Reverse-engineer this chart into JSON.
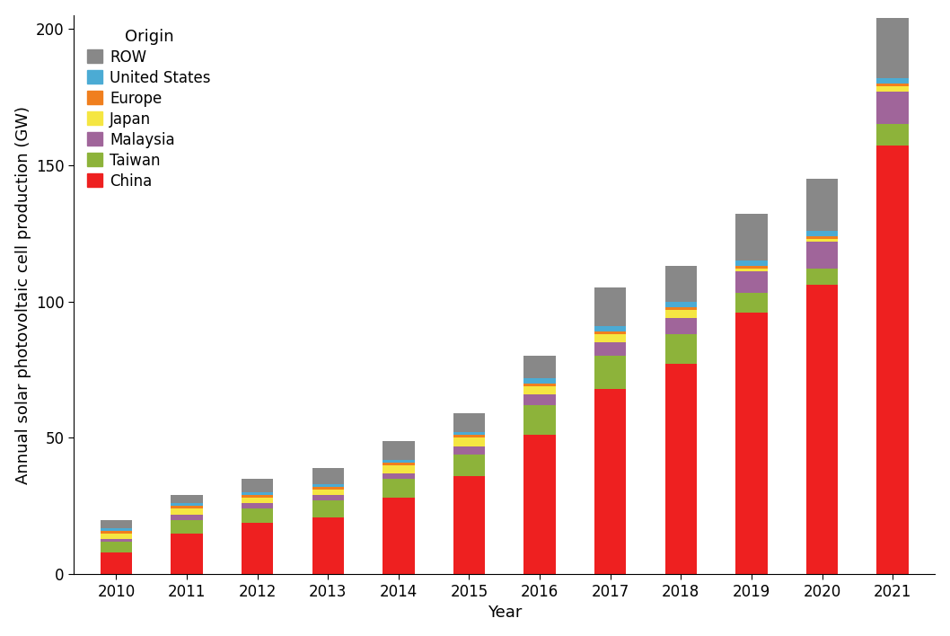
{
  "years": [
    2010,
    2011,
    2012,
    2013,
    2014,
    2015,
    2016,
    2017,
    2018,
    2019,
    2020,
    2021
  ],
  "China": [
    8,
    15,
    19,
    21,
    28,
    36,
    51,
    68,
    77,
    96,
    106,
    157
  ],
  "Taiwan": [
    4,
    5,
    5,
    6,
    7,
    8,
    11,
    12,
    11,
    7,
    6,
    8
  ],
  "Malaysia": [
    1,
    2,
    2,
    2,
    2,
    3,
    4,
    5,
    6,
    8,
    10,
    12
  ],
  "Japan": [
    2,
    2,
    2,
    2,
    3,
    3,
    3,
    3,
    3,
    1,
    1,
    2
  ],
  "Europe": [
    1,
    1,
    1,
    1,
    1,
    1,
    1,
    1,
    1,
    1,
    1,
    1
  ],
  "United States": [
    1,
    1,
    1,
    1,
    1,
    1,
    2,
    2,
    2,
    2,
    2,
    2
  ],
  "ROW": [
    3,
    3,
    5,
    6,
    7,
    7,
    8,
    14,
    13,
    17,
    19,
    22
  ],
  "colors": {
    "China": "#EE2020",
    "Taiwan": "#8DB33A",
    "Malaysia": "#A0659A",
    "Japan": "#F5E642",
    "Europe": "#F07F1E",
    "United States": "#4BABD4",
    "ROW": "#888888"
  },
  "legend_order": [
    "ROW",
    "United States",
    "Europe",
    "Japan",
    "Malaysia",
    "Taiwan",
    "China"
  ],
  "ylabel": "Annual solar photovoltaic cell production (GW)",
  "xlabel": "Year",
  "legend_title": "Origin",
  "ylim": [
    0,
    205
  ],
  "yticks": [
    0,
    50,
    100,
    150,
    200
  ],
  "background_color": "#ffffff",
  "label_fontsize": 13,
  "tick_fontsize": 12,
  "legend_fontsize": 12,
  "bar_width": 0.45
}
